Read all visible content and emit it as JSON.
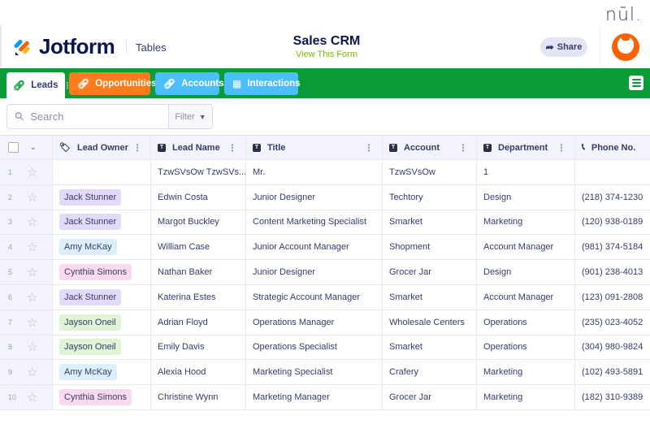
{
  "watermark": {
    "text": "nūl",
    "dot": "."
  },
  "header": {
    "brand": "Jotform",
    "section": "Tables",
    "form_title": "Sales CRM",
    "form_link": "View This Form",
    "share_label": "Share",
    "share_icon": "share-arrow-icon",
    "avatar_icon": "podo-cat-avatar"
  },
  "tabs": [
    {
      "label": "Leads",
      "icon": "link-icon",
      "active": true,
      "color": "#ffffff"
    },
    {
      "label": "Opportunities",
      "icon": "link-icon",
      "active": false,
      "color": "#ff7b1c"
    },
    {
      "label": "Accounts",
      "icon": "link-icon",
      "active": false,
      "color": "#4dbefc"
    },
    {
      "label": "Interactions",
      "icon": "grid-icon",
      "active": false,
      "color": "#4dbefc"
    }
  ],
  "toolbar": {
    "search_placeholder": "Search",
    "filter_label": "Filter"
  },
  "colors": {
    "tabbar_green": "#0a9c36",
    "brand_navy": "#0a1551",
    "form_link_green": "#78bb07",
    "avatar_orange": "#ff6100"
  },
  "table": {
    "columns": [
      {
        "label": "Lead Owner",
        "icon": "tag-icon"
      },
      {
        "label": "Lead Name",
        "icon": "text-type-icon"
      },
      {
        "label": "Title",
        "icon": "text-type-icon"
      },
      {
        "label": "Account",
        "icon": "text-type-icon"
      },
      {
        "label": "Department",
        "icon": "text-type-icon"
      },
      {
        "label": "Phone No.",
        "icon": "phone-icon"
      }
    ],
    "rows": [
      {
        "num": "1",
        "owner": "",
        "owner_color": "",
        "name": "TzwSVsOw TzwSVs...",
        "title": "Mr.",
        "account": "TzwSVsOw",
        "department": "1",
        "phone": ""
      },
      {
        "num": "2",
        "owner": "Jack Stunner",
        "owner_color": "#e3d9fb",
        "name": "Edwin Costa",
        "title": "Junior Designer",
        "account": "Techtory",
        "department": "Design",
        "phone": "(218) 374-1230"
      },
      {
        "num": "3",
        "owner": "Jack Stunner",
        "owner_color": "#e3d9fb",
        "name": "Margot Buckley",
        "title": "Content Marketing Specialist",
        "account": "Smarket",
        "department": "Marketing",
        "phone": "(120) 938-0189"
      },
      {
        "num": "4",
        "owner": "Amy McKay",
        "owner_color": "#dcf0fb",
        "name": "William Case",
        "title": "Junior Account Manager",
        "account": "Shopment",
        "department": "Account Manager",
        "phone": "(981) 374-5184"
      },
      {
        "num": "5",
        "owner": "Cynthia Simons",
        "owner_color": "#fbdaee",
        "name": "Nathan Baker",
        "title": "Junior Designer",
        "account": "Grocer Jar",
        "department": "Design",
        "phone": "(901) 238-4013"
      },
      {
        "num": "6",
        "owner": "Jack Stunner",
        "owner_color": "#e3d9fb",
        "name": "Katerina Estes",
        "title": "Strategic Account Manager",
        "account": "Smarket",
        "department": "Account Manager",
        "phone": "(123) 091-2808"
      },
      {
        "num": "7",
        "owner": "Jayson Oneil",
        "owner_color": "#dff4d4",
        "name": "Adrian Floyd",
        "title": "Operations Manager",
        "account": "Wholesale Centers",
        "department": "Operations",
        "phone": "(235) 023-4052"
      },
      {
        "num": "8",
        "owner": "Jayson Oneil",
        "owner_color": "#dff4d4",
        "name": "Emily Davis",
        "title": "Operations Specialist",
        "account": "Smarket",
        "department": "Operations",
        "phone": "(304) 980-9824"
      },
      {
        "num": "9",
        "owner": "Amy McKay",
        "owner_color": "#dcf0fb",
        "name": "Alexia Hood",
        "title": "Marketing Specialist",
        "account": "Crafery",
        "department": "Marketing",
        "phone": "(102) 493-5891"
      },
      {
        "num": "10",
        "owner": "Cynthia Simons",
        "owner_color": "#fbdaee",
        "name": "Christine Wynn",
        "title": "Marketing Manager",
        "account": "Grocer Jar",
        "department": "Marketing",
        "phone": "(182) 310-9389"
      }
    ]
  }
}
